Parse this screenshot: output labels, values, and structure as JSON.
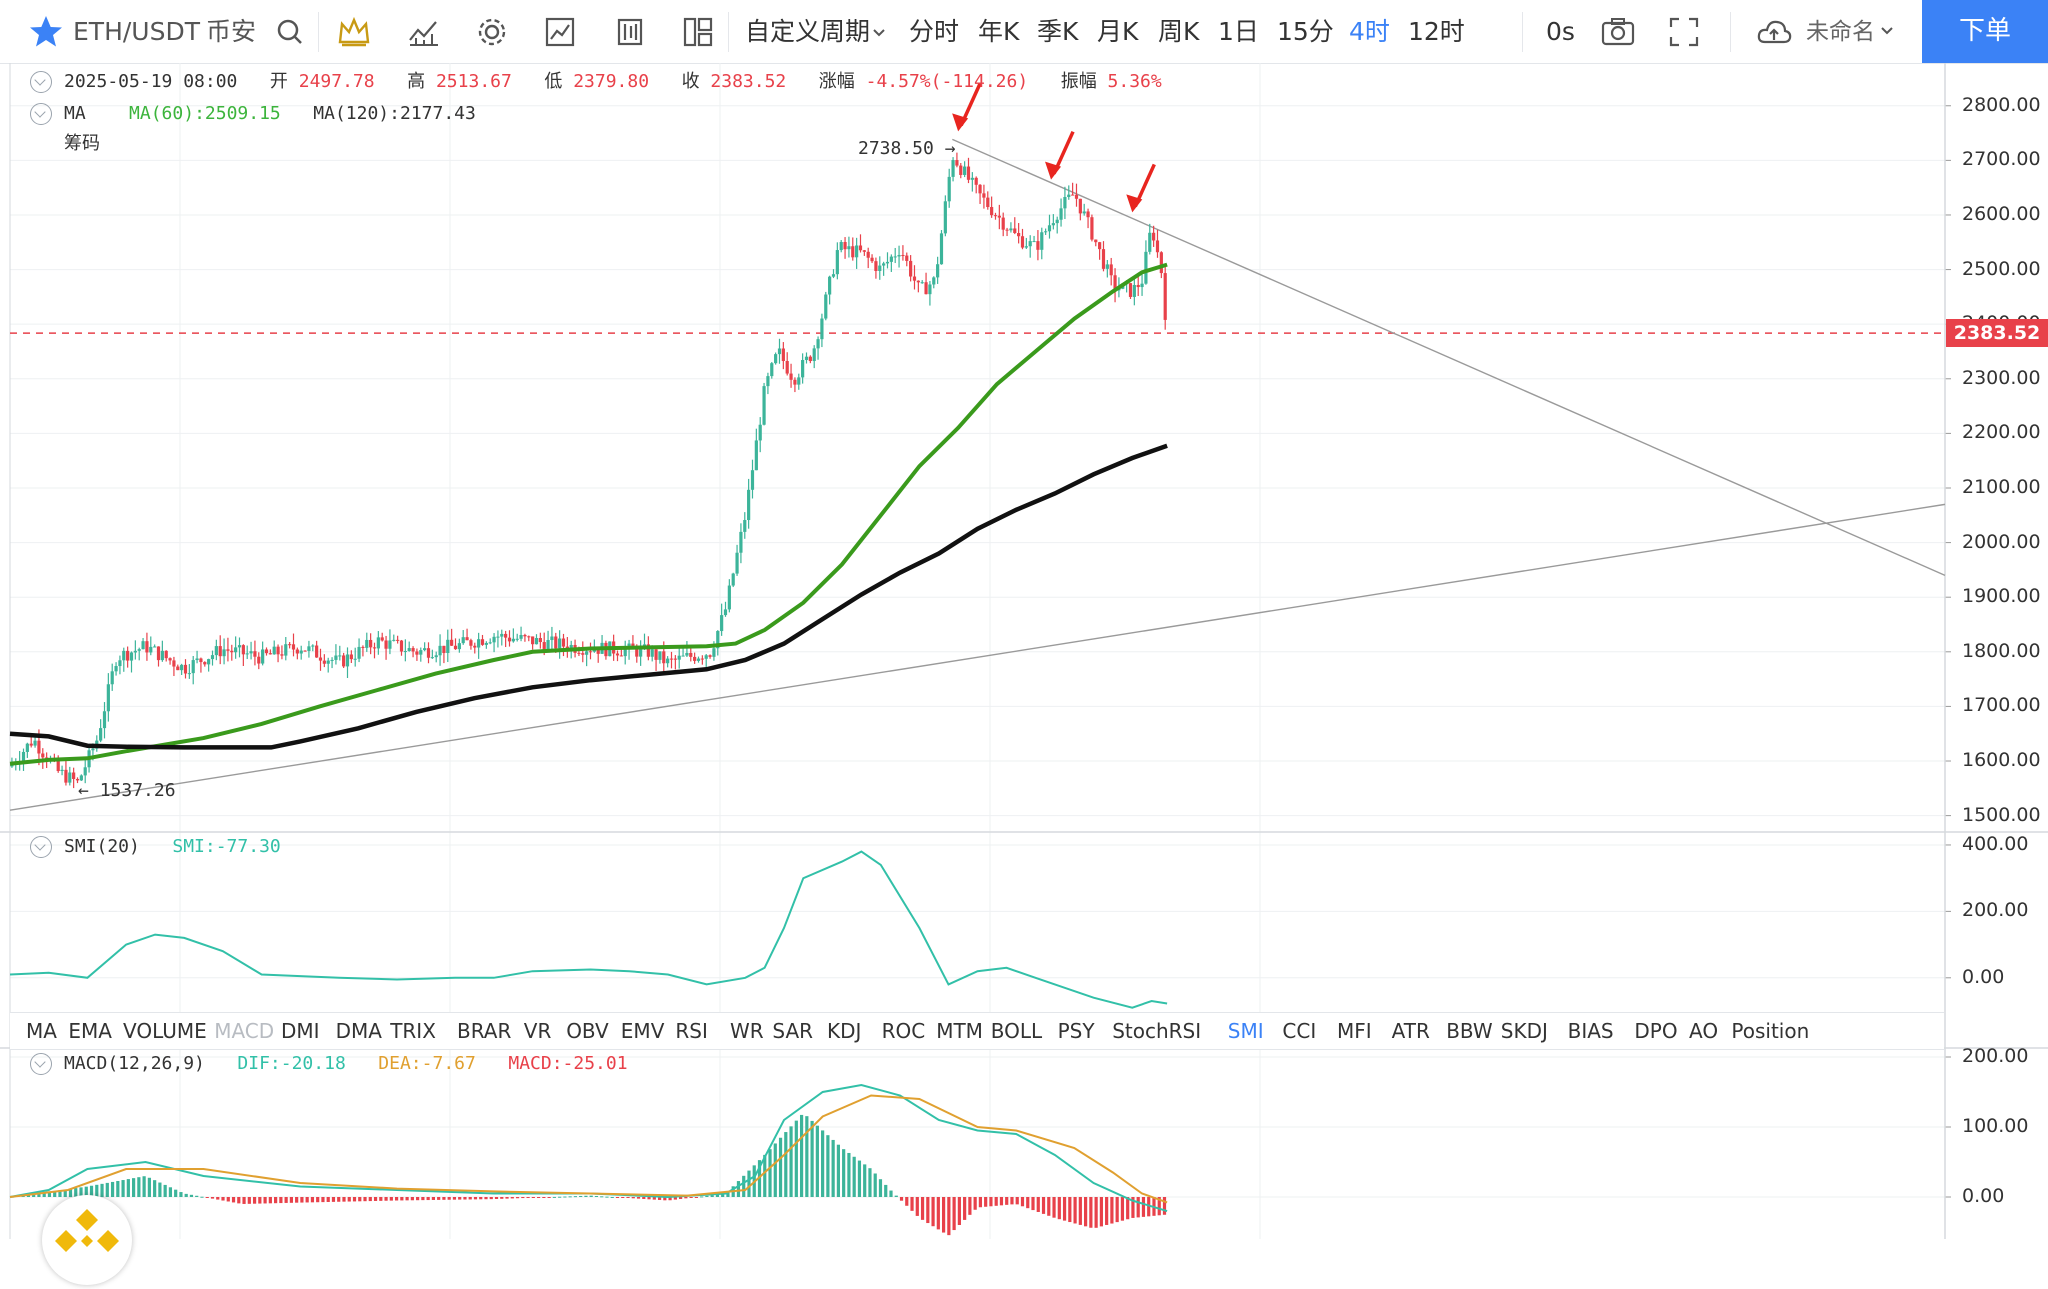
{
  "toolbar": {
    "symbol": "ETH/USDT",
    "exchange": "币安",
    "custom_period": "自定义周期",
    "periods": [
      "分时",
      "年K",
      "季K",
      "月K",
      "周K",
      "1日",
      "15分",
      "4时",
      "12时"
    ],
    "active_period": "4时",
    "countdown": "0s",
    "layout_name": "未命名",
    "order_button": "下单",
    "icons": [
      "star-icon",
      "search-icon",
      "crown-icon",
      "indicator-icon",
      "gear-icon",
      "chart-type-icon",
      "template-icon",
      "layout-icon",
      "camera-icon",
      "fullscreen-icon",
      "cloud-icon"
    ],
    "accent_color": "#3b82f6"
  },
  "ohlc": {
    "datetime": "2025-05-19 08:00",
    "open_label": "开",
    "open": "2497.78",
    "high_label": "高",
    "high": "2513.67",
    "low_label": "低",
    "low": "2379.80",
    "close_label": "收",
    "close": "2383.52",
    "change_label": "涨幅",
    "change": "-4.57%(-114.26)",
    "amplitude_label": "振幅",
    "amplitude": "5.36%"
  },
  "ma_legend": {
    "name": "MA",
    "ma60": "MA(60):2509.15",
    "ma120": "MA(120):2177.43"
  },
  "chips_label": "筹码",
  "smi_legend": {
    "name": "SMI(20)",
    "value": "SMI:-77.30"
  },
  "macd_legend": {
    "name": "MACD(12,26,9)",
    "dif": "DIF:-20.18",
    "dea": "DEA:-7.67",
    "macd": "MACD:-25.01"
  },
  "indicators": [
    "MA",
    "EMA",
    "VOLUME",
    "MACD",
    "DMI",
    "DMA",
    "TRIX",
    "BRAR",
    "VR",
    "OBV",
    "EMV",
    "RSI",
    "WR",
    "SAR",
    "KDJ",
    "ROC",
    "MTM",
    "BOLL",
    "PSY",
    "StochRSI",
    "SMI",
    "CCI",
    "MFI",
    "ATR",
    "BBW",
    "SKDJ",
    "BIAS",
    "DPO",
    "AO",
    "Position"
  ],
  "active_indicator": "SMI",
  "disabled_indicator": "MACD",
  "colors": {
    "up": "#3cb49a",
    "down": "#e8414a",
    "ma60": "#3a9a1c",
    "ma120": "#111111",
    "smi": "#32c0a8",
    "dif": "#32c0a8",
    "dea": "#e0a030",
    "arrow": "#e8251f"
  },
  "chart_data": [
    {
      "type": "candlestick",
      "symbol": "ETH/USDT",
      "interval": "4h",
      "ylim": [
        1470,
        2860
      ],
      "yticks": [
        1500,
        1600,
        1700,
        1800,
        1900,
        2000,
        2100,
        2200,
        2300,
        2400,
        2500,
        2600,
        2700,
        2800
      ],
      "ytick_labels": [
        "1500.00",
        "1600.00",
        "1700.00",
        "1800.00",
        "1900.00",
        "2000.00",
        "2100.00",
        "2200.00",
        "2300.00",
        "2400.00",
        "2500.00",
        "2600.00",
        "2700.00",
        "2800.00"
      ],
      "last_price": 2383.52,
      "last_price_label": "2383.52",
      "annotations": [
        {
          "text": "2738.50",
          "kind": "high",
          "value": 2738.5
        },
        {
          "text": "1537.26",
          "kind": "low",
          "value": 1537.26
        }
      ],
      "trendlines": [
        {
          "name": "resistance",
          "points": [
            [
              0.487,
              2738.5
            ],
            [
              1.0,
              1940
            ]
          ]
        },
        {
          "name": "support",
          "points": [
            [
              0.0,
              1510
            ],
            [
              1.0,
              2070
            ]
          ]
        }
      ],
      "close_path": [
        [
          0.0,
          1590
        ],
        [
          0.012,
          1640
        ],
        [
          0.025,
          1580
        ],
        [
          0.035,
          1560
        ],
        [
          0.045,
          1640
        ],
        [
          0.055,
          1790
        ],
        [
          0.07,
          1810
        ],
        [
          0.09,
          1770
        ],
        [
          0.11,
          1805
        ],
        [
          0.13,
          1790
        ],
        [
          0.15,
          1810
        ],
        [
          0.17,
          1780
        ],
        [
          0.19,
          1820
        ],
        [
          0.21,
          1800
        ],
        [
          0.23,
          1810
        ],
        [
          0.25,
          1830
        ],
        [
          0.27,
          1820
        ],
        [
          0.29,
          1810
        ],
        [
          0.31,
          1805
        ],
        [
          0.33,
          1800
        ],
        [
          0.34,
          1780
        ],
        [
          0.35,
          1790
        ],
        [
          0.362,
          1800
        ],
        [
          0.37,
          1880
        ],
        [
          0.38,
          2050
        ],
        [
          0.39,
          2280
        ],
        [
          0.397,
          2350
        ],
        [
          0.405,
          2300
        ],
        [
          0.415,
          2350
        ],
        [
          0.42,
          2420
        ],
        [
          0.428,
          2540
        ],
        [
          0.44,
          2530
        ],
        [
          0.45,
          2500
        ],
        [
          0.46,
          2540
        ],
        [
          0.47,
          2460
        ],
        [
          0.478,
          2480
        ],
        [
          0.487,
          2710
        ],
        [
          0.5,
          2640
        ],
        [
          0.51,
          2600
        ],
        [
          0.52,
          2560
        ],
        [
          0.53,
          2540
        ],
        [
          0.54,
          2600
        ],
        [
          0.55,
          2640
        ],
        [
          0.56,
          2560
        ],
        [
          0.57,
          2470
        ],
        [
          0.58,
          2460
        ],
        [
          0.585,
          2480
        ],
        [
          0.59,
          2580
        ],
        [
          0.595,
          2497.78
        ],
        [
          0.598,
          2383.52
        ]
      ],
      "series": [
        {
          "name": "MA(60)",
          "points": [
            [
              0.0,
              1595
            ],
            [
              0.02,
              1602
            ],
            [
              0.04,
              1605
            ],
            [
              0.06,
              1618
            ],
            [
              0.08,
              1630
            ],
            [
              0.1,
              1642
            ],
            [
              0.13,
              1668
            ],
            [
              0.16,
              1700
            ],
            [
              0.19,
              1730
            ],
            [
              0.22,
              1760
            ],
            [
              0.25,
              1785
            ],
            [
              0.27,
              1800
            ],
            [
              0.3,
              1806
            ],
            [
              0.33,
              1808
            ],
            [
              0.36,
              1810
            ],
            [
              0.375,
              1815
            ],
            [
              0.39,
              1840
            ],
            [
              0.41,
              1890
            ],
            [
              0.43,
              1960
            ],
            [
              0.45,
              2050
            ],
            [
              0.47,
              2140
            ],
            [
              0.49,
              2210
            ],
            [
              0.51,
              2290
            ],
            [
              0.53,
              2350
            ],
            [
              0.55,
              2410
            ],
            [
              0.57,
              2460
            ],
            [
              0.585,
              2495
            ],
            [
              0.598,
              2509.15
            ]
          ]
        },
        {
          "name": "MA(120)",
          "points": [
            [
              0.0,
              1650
            ],
            [
              0.02,
              1645
            ],
            [
              0.04,
              1628
            ],
            [
              0.06,
              1626
            ],
            [
              0.09,
              1625
            ],
            [
              0.12,
              1625
            ],
            [
              0.135,
              1625
            ],
            [
              0.15,
              1636
            ],
            [
              0.18,
              1660
            ],
            [
              0.21,
              1690
            ],
            [
              0.24,
              1715
            ],
            [
              0.27,
              1735
            ],
            [
              0.3,
              1748
            ],
            [
              0.33,
              1758
            ],
            [
              0.36,
              1768
            ],
            [
              0.38,
              1785
            ],
            [
              0.4,
              1815
            ],
            [
              0.42,
              1860
            ],
            [
              0.44,
              1905
            ],
            [
              0.46,
              1945
            ],
            [
              0.48,
              1980
            ],
            [
              0.5,
              2025
            ],
            [
              0.52,
              2060
            ],
            [
              0.54,
              2090
            ],
            [
              0.56,
              2125
            ],
            [
              0.58,
              2155
            ],
            [
              0.598,
              2177.43
            ]
          ]
        }
      ]
    },
    {
      "type": "line",
      "title": "SMI(20)",
      "ylim": [
        -100,
        430
      ],
      "yticks": [
        0,
        200,
        400
      ],
      "ytick_labels": [
        "0.00",
        "200.00",
        "400.00"
      ],
      "series": [
        {
          "name": "SMI",
          "points": [
            [
              0.0,
              10
            ],
            [
              0.02,
              15
            ],
            [
              0.04,
              0
            ],
            [
              0.06,
              100
            ],
            [
              0.075,
              130
            ],
            [
              0.09,
              120
            ],
            [
              0.11,
              80
            ],
            [
              0.13,
              10
            ],
            [
              0.17,
              0
            ],
            [
              0.2,
              -5
            ],
            [
              0.23,
              0
            ],
            [
              0.25,
              0
            ],
            [
              0.27,
              20
            ],
            [
              0.3,
              25
            ],
            [
              0.32,
              20
            ],
            [
              0.34,
              10
            ],
            [
              0.36,
              -20
            ],
            [
              0.38,
              0
            ],
            [
              0.39,
              30
            ],
            [
              0.4,
              150
            ],
            [
              0.41,
              300
            ],
            [
              0.43,
              350
            ],
            [
              0.44,
              380
            ],
            [
              0.45,
              340
            ],
            [
              0.47,
              150
            ],
            [
              0.485,
              -20
            ],
            [
              0.5,
              20
            ],
            [
              0.515,
              30
            ],
            [
              0.53,
              0
            ],
            [
              0.56,
              -60
            ],
            [
              0.58,
              -90
            ],
            [
              0.59,
              -70
            ],
            [
              0.598,
              -77.3
            ]
          ]
        }
      ]
    },
    {
      "type": "bar+line",
      "title": "MACD(12,26,9)",
      "ylim": [
        -60,
        210
      ],
      "yticks": [
        0,
        100,
        200
      ],
      "ytick_labels": [
        "0.00",
        "100.00",
        "200.00"
      ],
      "series": [
        {
          "name": "DIF",
          "points": [
            [
              0.0,
              0
            ],
            [
              0.02,
              10
            ],
            [
              0.04,
              40
            ],
            [
              0.07,
              50
            ],
            [
              0.1,
              30
            ],
            [
              0.15,
              15
            ],
            [
              0.2,
              10
            ],
            [
              0.25,
              5
            ],
            [
              0.3,
              5
            ],
            [
              0.34,
              0
            ],
            [
              0.37,
              5
            ],
            [
              0.385,
              30
            ],
            [
              0.4,
              110
            ],
            [
              0.42,
              150
            ],
            [
              0.44,
              160
            ],
            [
              0.46,
              145
            ],
            [
              0.48,
              110
            ],
            [
              0.5,
              95
            ],
            [
              0.52,
              90
            ],
            [
              0.54,
              60
            ],
            [
              0.56,
              20
            ],
            [
              0.58,
              -5
            ],
            [
              0.598,
              -20.18
            ]
          ]
        },
        {
          "name": "DEA",
          "points": [
            [
              0.0,
              0
            ],
            [
              0.03,
              10
            ],
            [
              0.06,
              40
            ],
            [
              0.1,
              40
            ],
            [
              0.15,
              20
            ],
            [
              0.2,
              12
            ],
            [
              0.25,
              8
            ],
            [
              0.3,
              5
            ],
            [
              0.35,
              2
            ],
            [
              0.38,
              10
            ],
            [
              0.4,
              60
            ],
            [
              0.42,
              115
            ],
            [
              0.445,
              145
            ],
            [
              0.47,
              140
            ],
            [
              0.5,
              100
            ],
            [
              0.52,
              95
            ],
            [
              0.55,
              70
            ],
            [
              0.57,
              35
            ],
            [
              0.585,
              5
            ],
            [
              0.598,
              -7.67
            ]
          ]
        }
      ],
      "histogram": [
        [
          0.0,
          0
        ],
        [
          0.04,
          15
        ],
        [
          0.07,
          30
        ],
        [
          0.09,
          5
        ],
        [
          0.12,
          -10
        ],
        [
          0.15,
          -8
        ],
        [
          0.2,
          -5
        ],
        [
          0.25,
          -3
        ],
        [
          0.3,
          2
        ],
        [
          0.34,
          -5
        ],
        [
          0.37,
          5
        ],
        [
          0.39,
          60
        ],
        [
          0.41,
          120
        ],
        [
          0.43,
          70
        ],
        [
          0.445,
          40
        ],
        [
          0.455,
          10
        ],
        [
          0.47,
          -30
        ],
        [
          0.485,
          -55
        ],
        [
          0.5,
          -15
        ],
        [
          0.52,
          -10
        ],
        [
          0.54,
          -30
        ],
        [
          0.56,
          -45
        ],
        [
          0.58,
          -30
        ],
        [
          0.598,
          -25.01
        ]
      ]
    }
  ]
}
